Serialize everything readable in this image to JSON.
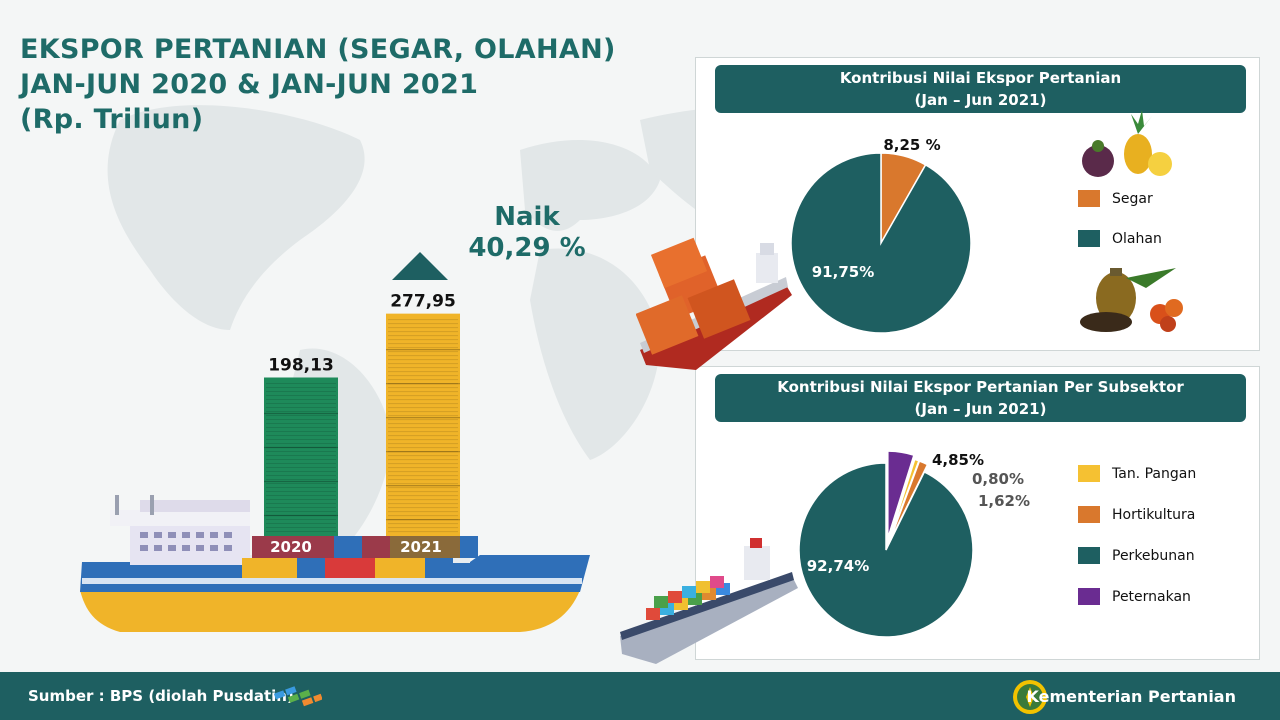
{
  "title": {
    "line1": "EKSPOR PERTANIAN (SEGAR, OLAHAN)",
    "line2": "JAN-JUN 2020 & JAN-JUN 2021",
    "line3": "(Rp. Triliun)"
  },
  "growth": {
    "label": "Naik",
    "value": "40,29 %"
  },
  "chart_data": [
    {
      "type": "bar",
      "categories": [
        "2020",
        "2021"
      ],
      "values": [
        198.13,
        277.95
      ],
      "value_labels": [
        "198,13",
        "277,95"
      ],
      "colors": [
        "#1e8a5a",
        "#f0b429"
      ],
      "title": "EKSPOR PERTANIAN (SEGAR, OLAHAN) JAN-JUN 2020 & JAN-JUN 2021 (Rp. Triliun)"
    },
    {
      "type": "pie",
      "title": "Kontribusi  Nilai Ekspor Pertanian",
      "subtitle": "(Jan – Jun 2021)",
      "labels": [
        "Segar",
        "Olahan"
      ],
      "values": [
        8.25,
        91.75
      ],
      "value_labels": [
        "8,25 %",
        "91,75%"
      ],
      "colors": [
        "#d9782d",
        "#1e5f61"
      ],
      "legend_position": "right"
    },
    {
      "type": "pie",
      "title": "Kontribusi  Nilai Ekspor Pertanian Per Subsektor",
      "subtitle": "(Jan – Jun 2021)",
      "labels": [
        "Tan. Pangan",
        "Hortikultura",
        "Perkebunan",
        "Peternakan"
      ],
      "values": [
        0.8,
        1.62,
        92.74,
        4.85
      ],
      "value_labels": [
        "0,80%",
        "1,62%",
        "92,74%",
        "4,85%"
      ],
      "colors": [
        "#f5c132",
        "#d9782d",
        "#1e5f61",
        "#6a2c91"
      ],
      "legend_position": "right"
    }
  ],
  "footer": {
    "source": "Sumber : BPS (diolah Pusdatin)",
    "ministry": "Kementerian Pertanian"
  }
}
